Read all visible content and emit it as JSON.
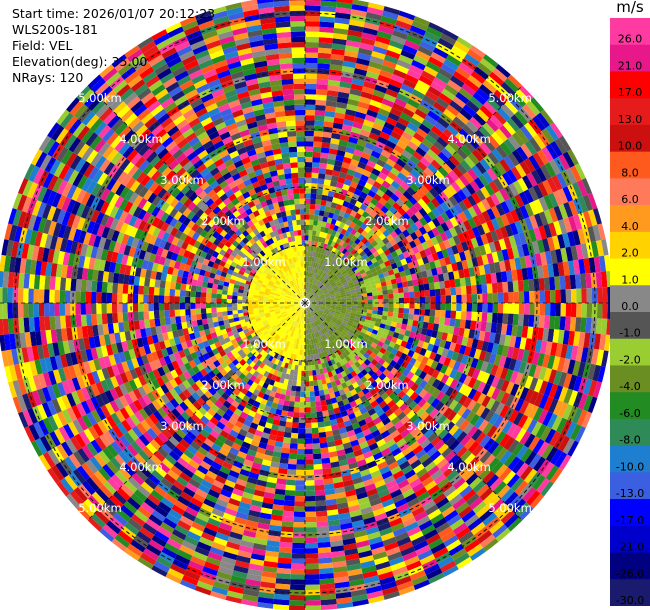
{
  "header": {
    "start_time": "Start time: 2026/01/07 20:12:23",
    "instrument": "WLS200s-181",
    "field": "Field: VEL",
    "elevation": "Elevation(deg): 35.00",
    "nrays": "NRays: 120"
  },
  "colorbar": {
    "unit": "m/s",
    "ticks": [
      "26.0",
      "21.0",
      "17.0",
      "13.0",
      "10.0",
      "8.0",
      "6.0",
      "4.0",
      "2.0",
      "1.0",
      "0.0",
      "-1.0",
      "-2.0",
      "-4.0",
      "-6.0",
      "-8.0",
      "-10.0",
      "-13.0",
      "-17.0",
      "-21.0",
      "-26.0",
      "-30.0"
    ],
    "colors": [
      "#ff3aa0",
      "#e8188a",
      "#ff0000",
      "#e61c1c",
      "#cc1010",
      "#ff5a1e",
      "#ff7a5a",
      "#ff9a1e",
      "#ffd200",
      "#ffff00",
      "#888888",
      "#555555",
      "#9acd32",
      "#6b8e23",
      "#228b22",
      "#2e8b57",
      "#1e7fd0",
      "#3a5fe0",
      "#0000ff",
      "#0000cd",
      "#000080",
      "#1a1a6e"
    ]
  },
  "chart_data": {
    "type": "ppi",
    "field": "VEL",
    "elevation_deg": 35.0,
    "nrays": 120,
    "range_unit": "km",
    "range_rings_km": [
      1.0,
      2.0,
      3.0,
      4.0,
      5.0
    ],
    "ring_labels": [
      "1.00km",
      "2.00km",
      "3.00km",
      "4.00km",
      "5.00km"
    ],
    "clean_radius_km": 1.0,
    "max_range_km": 5.3,
    "velocity_range": [
      -30.0,
      26.0
    ]
  }
}
